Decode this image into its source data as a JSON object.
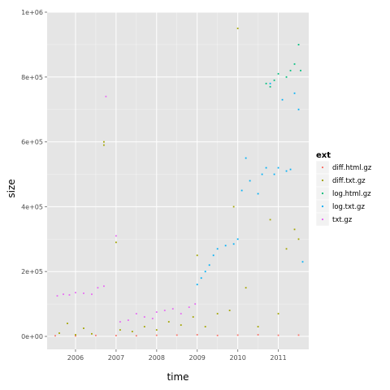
{
  "chart_data": {
    "type": "scatter",
    "title": "",
    "xlabel": "time",
    "ylabel": "size",
    "xlim": [
      2005.3,
      2011.75
    ],
    "ylim": [
      -40000,
      1000000
    ],
    "x_ticks": [
      2006,
      2007,
      2008,
      2009,
      2010,
      2011
    ],
    "x_tick_labels": [
      "2006",
      "2007",
      "2008",
      "2009",
      "2010",
      "2011"
    ],
    "y_ticks": [
      0,
      200000,
      400000,
      600000,
      800000,
      1000000
    ],
    "y_tick_labels": [
      "0e+00",
      "2e+05",
      "4e+05",
      "6e+05",
      "8e+05",
      "1e+06"
    ],
    "grid": true,
    "legend": {
      "title": "ext",
      "placement": "right",
      "entries": [
        "diff.html.gz",
        "diff.txt.gz",
        "log.html.gz",
        "log.txt.gz",
        "txt.gz"
      ]
    },
    "colors": {
      "diff.html.gz": "#F8766D",
      "diff.txt.gz": "#A3A500",
      "log.html.gz": "#00BF7D",
      "log.txt.gz": "#00B0F6",
      "txt.gz": "#E76BF3"
    },
    "panel_background": "#E5E5E5",
    "grid_color": "#FFFFFF",
    "series": [
      {
        "name": "diff.html.gz",
        "x": [
          2005.5,
          2006.0,
          2006.5,
          2007.0,
          2007.5,
          2008.0,
          2008.5,
          2009.0,
          2009.5,
          2010.0,
          2010.5,
          2011.0,
          2011.5
        ],
        "y": [
          2000,
          1500,
          3000,
          2500,
          2000,
          3500,
          4000,
          5000,
          3000,
          4000,
          5000,
          3500,
          4000
        ]
      },
      {
        "name": "diff.txt.gz",
        "x": [
          2005.6,
          2005.8,
          2006.0,
          2006.2,
          2006.4,
          2006.7,
          2006.7,
          2007.0,
          2007.1,
          2007.4,
          2007.7,
          2008.0,
          2008.3,
          2008.6,
          2008.9,
          2009.0,
          2009.2,
          2009.5,
          2009.8,
          2009.9,
          2010.0,
          2010.2,
          2010.5,
          2010.8,
          2011.0,
          2011.2,
          2011.4,
          2011.5
        ],
        "y": [
          10000,
          40000,
          5000,
          25000,
          8000,
          590000,
          600000,
          290000,
          20000,
          15000,
          30000,
          20000,
          45000,
          35000,
          60000,
          250000,
          30000,
          70000,
          80000,
          400000,
          950000,
          150000,
          30000,
          360000,
          70000,
          270000,
          330000,
          300000
        ]
      },
      {
        "name": "log.html.gz",
        "x": [
          2010.7,
          2010.8,
          2010.9,
          2011.0,
          2011.2,
          2011.3,
          2011.4,
          2011.5,
          2011.55
        ],
        "y": [
          780000,
          770000,
          790000,
          810000,
          800000,
          820000,
          840000,
          900000,
          820000
        ]
      },
      {
        "name": "log.txt.gz",
        "x": [
          2009.0,
          2009.1,
          2009.2,
          2009.3,
          2009.4,
          2009.5,
          2009.7,
          2009.9,
          2010.0,
          2010.1,
          2010.2,
          2010.3,
          2010.5,
          2010.6,
          2010.7,
          2010.8,
          2010.9,
          2011.0,
          2011.1,
          2011.2,
          2011.3,
          2011.4,
          2011.5,
          2011.6
        ],
        "y": [
          160000,
          180000,
          200000,
          220000,
          250000,
          270000,
          280000,
          285000,
          300000,
          450000,
          550000,
          480000,
          440000,
          500000,
          520000,
          780000,
          500000,
          520000,
          730000,
          510000,
          515000,
          750000,
          700000,
          230000
        ]
      },
      {
        "name": "txt.gz",
        "x": [
          2005.55,
          2005.7,
          2005.85,
          2006.0,
          2006.2,
          2006.4,
          2006.55,
          2006.7,
          2006.75,
          2007.0,
          2007.1,
          2007.3,
          2007.5,
          2007.7,
          2007.9,
          2008.0,
          2008.2,
          2008.4,
          2008.6,
          2008.8,
          2008.95
        ],
        "y": [
          125000,
          130000,
          128000,
          135000,
          133000,
          130000,
          150000,
          155000,
          740000,
          310000,
          45000,
          50000,
          70000,
          60000,
          55000,
          75000,
          80000,
          85000,
          70000,
          90000,
          100000
        ]
      }
    ]
  }
}
